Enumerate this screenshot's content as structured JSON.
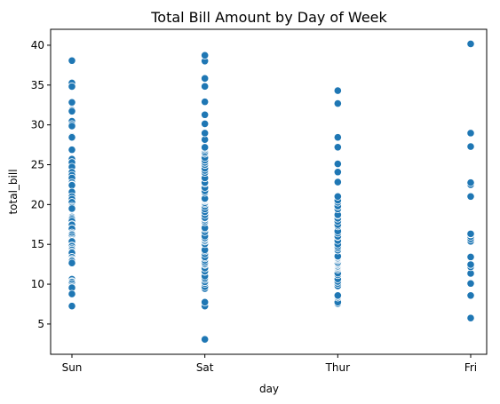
{
  "chart_data": {
    "type": "scatter",
    "title": "Total Bill Amount by Day of Week",
    "xlabel": "day",
    "ylabel": "total_bill",
    "categories": [
      "Sun",
      "Sat",
      "Thur",
      "Fri"
    ],
    "ylim": [
      1.2,
      42.0
    ],
    "yticks": [
      5,
      10,
      15,
      20,
      25,
      30,
      35,
      40
    ],
    "grid": false,
    "point_color": "#1f77b4",
    "series": [
      {
        "category": "Sun",
        "values": [
          38.07,
          35.26,
          34.81,
          32.83,
          31.85,
          31.71,
          30.46,
          30.06,
          29.85,
          28.55,
          28.44,
          26.88,
          25.71,
          25.29,
          24.71,
          24.06,
          23.68,
          23.33,
          22.76,
          22.49,
          22.42,
          21.58,
          21.01,
          20.69,
          20.29,
          19.81,
          19.65,
          19.49,
          18.43,
          18.29,
          18.15,
          17.92,
          17.51,
          17.46,
          16.99,
          16.97,
          16.45,
          16.31,
          16.21,
          15.98,
          15.69,
          15.53,
          15.42,
          15.36,
          14.83,
          14.78,
          14.48,
          14.31,
          14.07,
          13.94,
          13.39,
          13.13,
          13.03,
          12.9,
          12.66,
          10.63,
          10.34,
          10.33,
          10.29,
          10.27,
          10.07,
          9.78,
          9.6,
          9.55,
          8.77,
          7.25
        ]
      },
      {
        "category": "Sat",
        "values": [
          3.07,
          7.25,
          7.74,
          9.44,
          9.68,
          10.07,
          10.29,
          10.59,
          10.77,
          11.02,
          11.59,
          11.61,
          12.02,
          12.46,
          12.54,
          12.74,
          13.0,
          13.28,
          13.42,
          13.81,
          14.15,
          14.31,
          15.06,
          15.38,
          15.48,
          15.69,
          15.81,
          16.04,
          16.58,
          16.93,
          17.07,
          17.81,
          17.82,
          18.04,
          18.26,
          18.35,
          18.71,
          19.08,
          19.44,
          19.77,
          20.08,
          20.23,
          20.45,
          20.49,
          20.53,
          20.65,
          20.69,
          20.76,
          21.5,
          21.7,
          22.12,
          22.67,
          22.75,
          23.33,
          24.01,
          24.27,
          24.55,
          25.0,
          25.28,
          25.56,
          25.89,
          26.41,
          26.59,
          26.86,
          27.05,
          27.18,
          28.15,
          28.97,
          30.14,
          31.27,
          32.9,
          34.83,
          35.83,
          38.01,
          38.73
        ]
      },
      {
        "category": "Thur",
        "values": [
          7.51,
          7.56,
          7.74,
          8.35,
          8.52,
          8.58,
          9.78,
          10.07,
          10.33,
          10.65,
          11.17,
          11.38,
          11.87,
          12.03,
          12.16,
          12.26,
          12.43,
          12.48,
          12.6,
          12.74,
          13.0,
          13.03,
          13.16,
          13.27,
          13.42,
          13.51,
          14.26,
          14.52,
          14.73,
          15.01,
          15.48,
          15.95,
          15.98,
          16.0,
          16.4,
          16.66,
          17.29,
          17.47,
          17.89,
          18.26,
          18.64,
          18.71,
          19.44,
          19.77,
          19.81,
          20.27,
          20.53,
          21.01,
          22.82,
          24.08,
          25.1,
          27.2,
          28.44,
          32.68,
          34.3
        ]
      },
      {
        "category": "Fri",
        "values": [
          5.75,
          8.58,
          10.09,
          11.35,
          12.16,
          12.46,
          13.42,
          15.38,
          15.69,
          15.98,
          16.27,
          16.32,
          21.01,
          22.49,
          22.75,
          27.28,
          28.97,
          40.17
        ]
      }
    ]
  }
}
